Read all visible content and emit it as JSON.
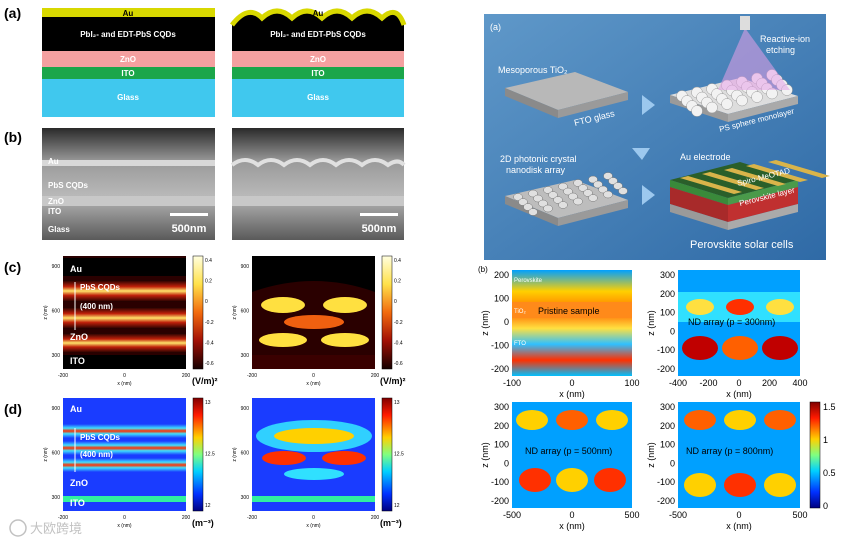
{
  "left": {
    "panel_a": {
      "label": "(a)",
      "layers": {
        "au": "Au",
        "cqd": "PbI₂- and EDT-PbS CQDs",
        "zno": "ZnO",
        "ito": "ITO",
        "glass": "Glass"
      }
    },
    "panel_b": {
      "label": "(b)",
      "layer_labels": [
        "Au",
        "PbS CQDs",
        "ZnO",
        "ITO",
        "Glass"
      ],
      "scale_bar": "500nm"
    },
    "panel_c": {
      "label": "(c)",
      "au": "Au",
      "cqd": "PbS CQDs",
      "thickness": "(400 nm)",
      "zno": "ZnO",
      "ito": "ITO",
      "unit": "(V/m)²",
      "xlabel": "x (nm)",
      "ylabel": "z (nm)",
      "xticks": [
        "-200",
        "0",
        "200"
      ],
      "yticks": [
        "900",
        "600",
        "300"
      ],
      "colorbar_ticks": [
        "0.4",
        "0.2",
        "0",
        "-0.2",
        "-0.4",
        "-0.6"
      ]
    },
    "panel_d": {
      "label": "(d)",
      "au": "Au",
      "cqd": "PbS CQDs",
      "thickness": "(400 nm)",
      "zno": "ZnO",
      "ito": "ITO",
      "unit": "(m⁻³)",
      "xlabel": "x (nm)",
      "ylabel": "z (nm)",
      "xticks": [
        "-200",
        "0",
        "200"
      ],
      "yticks": [
        "900",
        "600",
        "300"
      ],
      "colorbar_ticks": [
        "13",
        "12.5",
        "12"
      ]
    }
  },
  "right": {
    "panel_a": {
      "label": "(a)",
      "mesoporous": "Mesoporous TiO₂",
      "fto": "FTO glass",
      "rie": "Reactive-ion",
      "rie2": "etching",
      "ps": "PS sphere monolayer",
      "pc1": "2D photonic crystal",
      "pc2": "nanodisk array",
      "au_electrode": "Au electrode",
      "spiro": "Spiro-MeOTAD",
      "perov_layer": "Perovskite layer",
      "cells": "Perovskite solar cells"
    },
    "panel_b": {
      "label": "(b)",
      "plots": [
        {
          "title": "Pristine sample",
          "xticks": [
            "-100",
            "0",
            "100"
          ],
          "yticks": [
            "200",
            "100",
            "0",
            "-100",
            "-200"
          ],
          "xlabel": "x (nm)",
          "ylabel": "z (nm)",
          "layers": [
            "Perovskite",
            "TiO₂",
            "FTO"
          ]
        },
        {
          "title": "ND array (p = 300nm)",
          "xticks": [
            "-400",
            "-200",
            "0",
            "200",
            "400"
          ],
          "yticks": [
            "300",
            "200",
            "100",
            "0",
            "-100",
            "-200"
          ],
          "xlabel": "x (nm)",
          "ylabel": "z (nm)"
        },
        {
          "title": "ND array (p = 500nm)",
          "xticks": [
            "-500",
            "0",
            "500"
          ],
          "yticks": [
            "300",
            "200",
            "100",
            "0",
            "-100",
            "-200"
          ],
          "xlabel": "x (nm)",
          "ylabel": "z (nm)"
        },
        {
          "title": "ND array (p = 800nm)",
          "xticks": [
            "-500",
            "0",
            "500"
          ],
          "yticks": [
            "300",
            "200",
            "100",
            "0",
            "-100",
            "-200"
          ],
          "xlabel": "x (nm)",
          "ylabel": "z (nm)"
        }
      ],
      "colorbar": [
        "1.5",
        "1",
        "0.5",
        "0"
      ]
    }
  },
  "watermark": "大欧跨境"
}
